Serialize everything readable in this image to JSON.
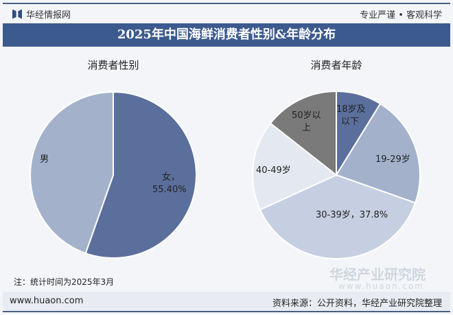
{
  "header": {
    "brand": "华经情报网",
    "slogan": "专业严谨 • 客观科学",
    "title": "2025年中国海鲜消费者性别&年龄分布"
  },
  "chart_data": [
    {
      "type": "pie",
      "title": "消费者性别",
      "categories": [
        "女",
        "男"
      ],
      "values": [
        55.4,
        44.6
      ],
      "data_labels": [
        "女，55.40%",
        "男"
      ],
      "colors": [
        "#5b6f9c",
        "#a3b1cb"
      ]
    },
    {
      "type": "pie",
      "title": "消费者年龄",
      "categories": [
        "18岁及以下",
        "19-29岁",
        "30-39岁",
        "40-49岁",
        "50岁以上"
      ],
      "values": [
        8.8,
        21.6,
        37.8,
        17.4,
        14.4
      ],
      "data_labels": [
        "18岁及以下",
        "19-29岁",
        "30-39岁，37.8%",
        "40-49岁",
        "50岁以上"
      ],
      "colors": [
        "#5b6f9c",
        "#a3b1cb",
        "#c6cee1",
        "#e4e8f0",
        "#7a7a7a"
      ]
    }
  ],
  "labels": {
    "female_a": "女，",
    "female_b": "55.40%",
    "male": "男",
    "age0a": "18岁及",
    "age0b": "以下",
    "age1": "19-29岁",
    "age2": "30-39岁，37.8%",
    "age3": "40-49岁",
    "age4a": "50岁以",
    "age4b": "上"
  },
  "note": "注：统计时间为2025年3月",
  "watermark": {
    "name": "华经产业研究院",
    "url": "www.huaon.com"
  },
  "footer": {
    "site": "www.huaon.com",
    "source": "资料来源：公开资料，华经产业研究院整理"
  }
}
